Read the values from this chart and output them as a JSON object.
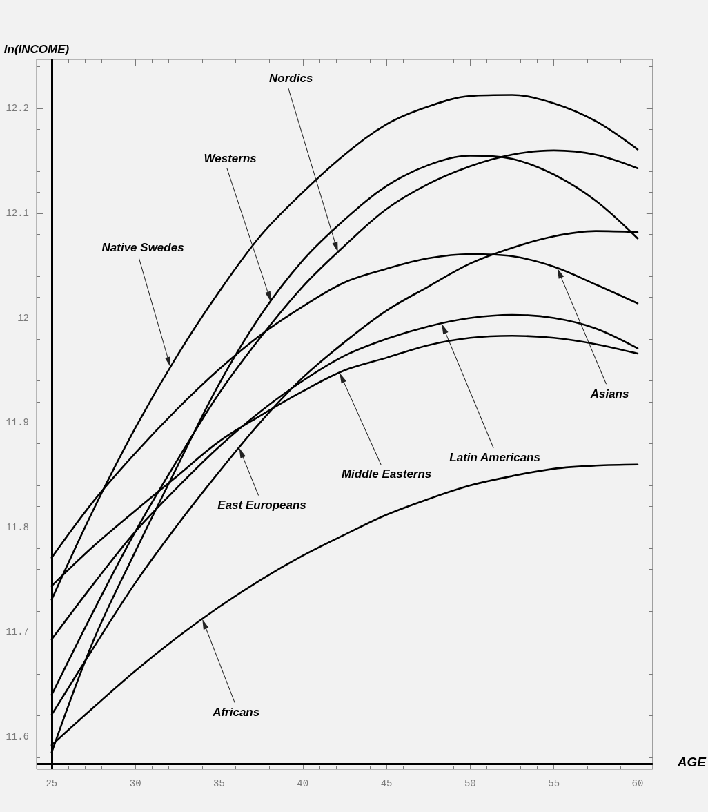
{
  "chart_data": {
    "type": "line",
    "xlabel": "AGE",
    "ylabel": "ln(INCOME)",
    "x": [
      25,
      27.5,
      30,
      32.5,
      35,
      37.5,
      40,
      42.5,
      45,
      47.5,
      50,
      52.5,
      55,
      57.5,
      60
    ],
    "series": [
      {
        "color": "#000000",
        "values": [
          11.731,
          11.817,
          11.895,
          11.964,
          12.025,
          12.079,
          12.12,
          12.156,
          12.185,
          12.202,
          12.212,
          12.213,
          12.205,
          12.188,
          12.161
        ]
      },
      {
        "color": "#000000",
        "values": [
          11.64,
          11.72,
          11.796,
          11.864,
          11.928,
          11.982,
          12.03,
          12.069,
          12.104,
          12.128,
          12.145,
          12.156,
          12.16,
          12.156,
          12.143
        ]
      },
      {
        "color": "#000000",
        "values": [
          11.585,
          11.692,
          11.777,
          11.858,
          11.937,
          12.003,
          12.055,
          12.094,
          12.126,
          12.146,
          12.155,
          12.152,
          12.137,
          12.112,
          12.076
        ]
      },
      {
        "color": "#000000",
        "values": [
          11.621,
          11.685,
          11.747,
          11.802,
          11.853,
          11.901,
          11.943,
          11.977,
          12.007,
          12.03,
          12.052,
          12.067,
          12.078,
          12.083,
          12.082
        ]
      },
      {
        "color": "#000000",
        "values": [
          11.744,
          11.782,
          11.816,
          11.849,
          11.882,
          11.907,
          11.93,
          11.95,
          11.962,
          11.974,
          11.981,
          11.983,
          11.981,
          11.975,
          11.966
        ]
      },
      {
        "color": "#000000",
        "values": [
          11.693,
          11.746,
          11.796,
          11.838,
          11.877,
          11.911,
          11.94,
          11.964,
          11.98,
          11.992,
          12.0,
          12.003,
          12.0,
          11.99,
          11.971
        ]
      },
      {
        "color": "#000000",
        "values": [
          11.771,
          11.825,
          11.871,
          11.913,
          11.951,
          11.984,
          12.011,
          12.034,
          12.047,
          12.057,
          12.061,
          12.059,
          12.049,
          12.032,
          12.014
        ]
      },
      {
        "color": "#000000",
        "values": [
          11.592,
          11.628,
          11.663,
          11.695,
          11.724,
          11.75,
          11.773,
          11.793,
          11.812,
          11.827,
          11.84,
          11.849,
          11.856,
          11.859,
          11.86
        ]
      }
    ],
    "annotations": [
      "Nordics",
      "Westerns",
      "Native Swedes",
      "Asians",
      "Latin Americans",
      "Middle Easterns",
      "East Europeans",
      "Africans"
    ],
    "xlim": [
      24.1,
      60.9
    ],
    "xticks": [
      25,
      {
        "value": 26,
        "label": null
      },
      {
        "value": 27,
        "label": null
      },
      {
        "value": 28,
        "label": null
      },
      {
        "value": 29,
        "label": null
      },
      30,
      {
        "value": 31,
        "label": null
      },
      {
        "value": 32,
        "label": null
      },
      {
        "value": 33,
        "label": null
      },
      {
        "value": 34,
        "label": null
      },
      35,
      {
        "value": 36,
        "label": null
      },
      {
        "value": 37,
        "label": null
      },
      {
        "value": 38,
        "label": null
      },
      {
        "value": 39,
        "label": null
      },
      40,
      {
        "value": 41,
        "label": null
      },
      {
        "value": 42,
        "label": null
      },
      {
        "value": 43,
        "label": null
      },
      {
        "value": 44,
        "label": null
      },
      45,
      {
        "value": 46,
        "label": null
      },
      {
        "value": 47,
        "label": null
      },
      {
        "value": 48,
        "label": null
      },
      {
        "value": 49,
        "label": null
      },
      50,
      {
        "value": 51,
        "label": null
      },
      {
        "value": 52,
        "label": null
      },
      {
        "value": 53,
        "label": null
      },
      {
        "value": 54,
        "label": null
      },
      55,
      {
        "value": 56,
        "label": null
      },
      {
        "value": 57,
        "label": null
      },
      {
        "value": 58,
        "label": null
      },
      {
        "value": 59,
        "label": null
      },
      60
    ],
    "ylim": [
      11.569,
      12.247
    ],
    "yticks": [
      {
        "value": 11.58,
        "label": null
      },
      11.6,
      {
        "value": 11.62,
        "label": null
      },
      {
        "value": 11.64,
        "label": null
      },
      {
        "value": 11.66,
        "label": null
      },
      {
        "value": 11.68,
        "label": null
      },
      11.7,
      {
        "value": 11.72,
        "label": null
      },
      {
        "value": 11.74,
        "label": null
      },
      {
        "value": 11.76,
        "label": null
      },
      {
        "value": 11.78,
        "label": null
      },
      11.8,
      {
        "value": 11.82,
        "label": null
      },
      {
        "value": 11.84,
        "label": null
      },
      {
        "value": 11.86,
        "label": null
      },
      {
        "value": 11.88,
        "label": null
      },
      11.9,
      {
        "value": 11.92,
        "label": null
      },
      {
        "value": 11.94,
        "label": null
      },
      {
        "value": 11.96,
        "label": null
      },
      {
        "value": 11.98,
        "label": null
      },
      12,
      {
        "value": 12.02,
        "label": null
      },
      {
        "value": 12.04,
        "label": null
      },
      {
        "value": 12.06,
        "label": null
      },
      {
        "value": 12.08,
        "label": null
      },
      12.1,
      {
        "value": 12.12,
        "label": null
      },
      {
        "value": 12.14,
        "label": null
      },
      {
        "value": 12.16,
        "label": null
      },
      {
        "value": 12.18,
        "label": null
      },
      12.2,
      {
        "value": 12.22,
        "label": null
      },
      {
        "value": 12.24,
        "label": null
      }
    ],
    "ref_lines": [
      {
        "axis": "x",
        "value": 25,
        "color": "#000000"
      },
      {
        "axis": "y",
        "value": 11.574,
        "color": "#000000"
      }
    ]
  }
}
